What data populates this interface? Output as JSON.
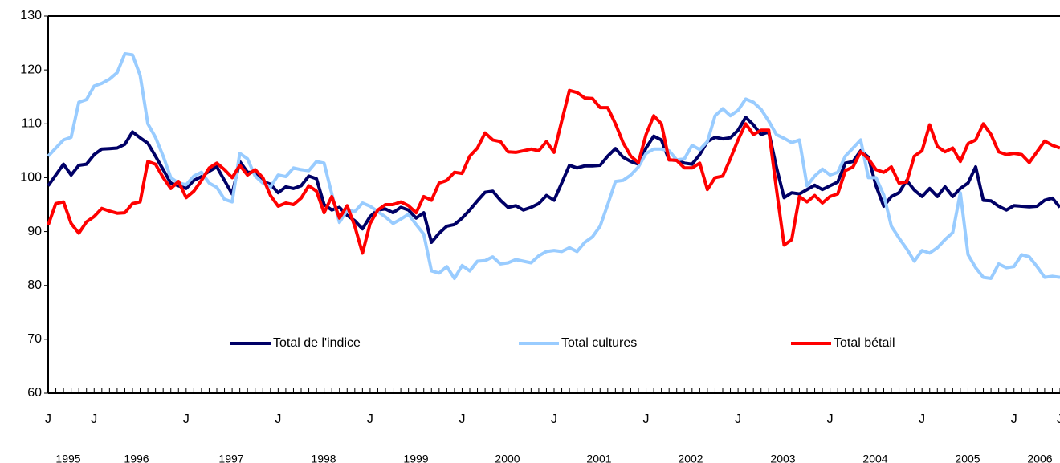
{
  "chart_data": {
    "type": "line",
    "categories": [
      "J",
      null,
      null,
      null,
      null,
      null,
      "J",
      null,
      null,
      null,
      null,
      null,
      null,
      null,
      null,
      null,
      null,
      null,
      "J",
      null,
      null,
      null,
      null,
      null,
      null,
      null,
      null,
      null,
      null,
      null,
      "J",
      null,
      null,
      null,
      null,
      null,
      null,
      null,
      null,
      null,
      null,
      null,
      "J",
      null,
      null,
      null,
      null,
      null,
      null,
      null,
      null,
      null,
      null,
      null,
      "J",
      null,
      null,
      null,
      null,
      null,
      null,
      null,
      null,
      null,
      null,
      null,
      "J",
      null,
      null,
      null,
      null,
      null,
      null,
      null,
      null,
      null,
      null,
      null,
      "J",
      null,
      null,
      null,
      null,
      null,
      null,
      null,
      null,
      null,
      null,
      null,
      "J",
      null,
      null,
      null,
      null,
      null,
      null,
      null,
      null,
      null,
      null,
      null,
      "J",
      null,
      null,
      null,
      null,
      null,
      null,
      null,
      null,
      null,
      null,
      null,
      "J",
      null,
      null,
      null,
      null,
      null,
      null,
      null,
      null,
      null,
      null,
      null,
      "J",
      null,
      null,
      null,
      null,
      null,
      "J"
    ],
    "years": [
      "1995",
      "1996",
      "1997",
      "1998",
      "1999",
      "2000",
      "2001",
      "2002",
      "2003",
      "2004",
      "2005",
      "2006"
    ],
    "series": [
      {
        "name": "Total de l'indice",
        "color": "#000066",
        "values": [
          98.5,
          100.5,
          102.5,
          100.5,
          102.3,
          102.5,
          104.3,
          105.3,
          105.4,
          105.5,
          106.2,
          108.5,
          107.4,
          106.4,
          104,
          101.5,
          99,
          98.5,
          98,
          99.5,
          100.2,
          101.2,
          102,
          99.5,
          97,
          103,
          101,
          101,
          99.3,
          98.8,
          97.2,
          98.3,
          98,
          98.5,
          100.3,
          99.8,
          95,
          94,
          94.5,
          93,
          92,
          90.5,
          92.8,
          94,
          94.2,
          93.5,
          94.5,
          94,
          92.5,
          93.5,
          88,
          89.7,
          91,
          91.3,
          92.5,
          94,
          95.7,
          97.3,
          97.5,
          95.8,
          94.5,
          94.8,
          94,
          94.5,
          95.2,
          96.7,
          95.8,
          99,
          102.3,
          101.8,
          102.2,
          102.2,
          102.3,
          104,
          105.4,
          103.8,
          103,
          102.5,
          105.5,
          107.7,
          107,
          103.3,
          103.2,
          102.7,
          102.5,
          104.3,
          106.7,
          107.5,
          107.2,
          107.4,
          108.8,
          111.2,
          109.8,
          108,
          108.5,
          102,
          96.3,
          97.2,
          97,
          97.8,
          98.6,
          97.8,
          98.5,
          99.2,
          102.7,
          103,
          105,
          103.8,
          98.5,
          94.7,
          96.5,
          97.2,
          99.5,
          97.7,
          96.5,
          98,
          96.5,
          98.3,
          96.5,
          98,
          99,
          102,
          95.8,
          95.7,
          94.7,
          94,
          94.8,
          94.7,
          94.6,
          94.7,
          95.8,
          96.2,
          94.5
        ]
      },
      {
        "name": "Total cultures",
        "color": "#99ccff",
        "values": [
          104,
          105.5,
          107,
          107.5,
          114,
          114.5,
          117,
          117.5,
          118.3,
          119.5,
          123,
          122.8,
          119,
          110,
          107.5,
          104,
          100,
          99,
          98.7,
          100.3,
          101,
          99,
          98.2,
          96,
          95.5,
          104.5,
          103.5,
          100.3,
          99,
          98.3,
          100.5,
          100.2,
          101.8,
          101.5,
          101.3,
          103,
          102.7,
          97,
          91.7,
          94,
          93.7,
          95.3,
          94.7,
          93.7,
          92.7,
          91.5,
          92.3,
          93.2,
          91.3,
          89.5,
          82.7,
          82.3,
          83.5,
          81.3,
          83.7,
          82.7,
          84.5,
          84.6,
          85.3,
          84,
          84.2,
          84.8,
          84.5,
          84.2,
          85.5,
          86.3,
          86.5,
          86.3,
          87,
          86.3,
          88,
          89,
          91,
          95,
          99.3,
          99.5,
          100.5,
          102,
          104.5,
          105.3,
          105.3,
          105,
          103.3,
          103.5,
          106,
          105.2,
          106.7,
          111.5,
          112.8,
          111.5,
          112.5,
          114.6,
          114,
          112.7,
          110.5,
          108,
          107.3,
          106.5,
          107,
          98.5,
          100.3,
          101.6,
          100.5,
          101,
          104,
          105.5,
          107,
          100,
          100,
          96.8,
          91,
          88.8,
          86.8,
          84.5,
          86.5,
          86,
          87,
          88.5,
          89.8,
          97.2,
          85.7,
          83.3,
          81.5,
          81.3,
          84,
          83.3,
          83.5,
          85.7,
          85.3,
          83.5,
          81.5,
          81.7,
          81.5
        ]
      },
      {
        "name": "Total bétail",
        "color": "#ff0000",
        "values": [
          91.2,
          95.2,
          95.5,
          91.5,
          89.7,
          91.8,
          92.8,
          94.3,
          93.8,
          93.4,
          93.5,
          95.2,
          95.5,
          103,
          102.5,
          100,
          98,
          99.3,
          96.3,
          97.5,
          99.5,
          101.8,
          102.7,
          101.5,
          100,
          102.3,
          100.5,
          101.5,
          100,
          96.7,
          94.7,
          95.3,
          95,
          96.2,
          98.5,
          97.5,
          93.5,
          96.5,
          92.5,
          94.8,
          91,
          86,
          91.5,
          94,
          95,
          95,
          95.5,
          94.8,
          93.5,
          96.5,
          95.8,
          99,
          99.5,
          101,
          100.8,
          104,
          105.5,
          108.3,
          107,
          106.7,
          104.8,
          104.7,
          105,
          105.3,
          105,
          106.7,
          104.7,
          110.5,
          116.2,
          115.8,
          114.8,
          114.7,
          113,
          113,
          110,
          106.5,
          104,
          102.8,
          108,
          111.5,
          110,
          103.3,
          103.2,
          101.8,
          101.8,
          102.7,
          97.8,
          100,
          100.3,
          103.5,
          107,
          110,
          108,
          108.8,
          108.8,
          98,
          87.5,
          88.5,
          96.5,
          95.5,
          96.7,
          95.3,
          96.5,
          97,
          101.3,
          102,
          104.8,
          103.5,
          101.5,
          101,
          102,
          99,
          99.2,
          104,
          105,
          109.8,
          105.8,
          104.8,
          105.5,
          103,
          106.3,
          107,
          110,
          108,
          104.8,
          104.3,
          104.5,
          104.3,
          102.8,
          104.8,
          106.8,
          106,
          105.5
        ]
      }
    ],
    "ylim": [
      60,
      130
    ],
    "yticks": [
      60,
      70,
      80,
      90,
      100,
      110,
      120,
      130
    ],
    "legend": "lower center"
  }
}
